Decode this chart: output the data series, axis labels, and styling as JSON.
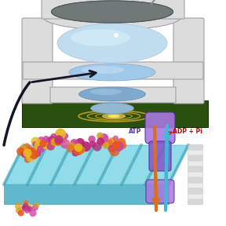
{
  "bg_color": "#ffffff",
  "pcb_color": "#2a5010",
  "pcb_edge": "#1a3008",
  "circuit_color": "#c8a020",
  "housing_white": "#dcdcdc",
  "housing_edge": "#a0a0a8",
  "housing_top_dark": "#707878",
  "inner_blue_light": "#c0ddf0",
  "inner_blue_mid": "#a0c8e8",
  "inner_blue_dark": "#80a8cc",
  "glow_color": "#e8d060",
  "arrow_dark": "#151528",
  "membrane_top": "#90dce8",
  "membrane_side": "#60b8cc",
  "membrane_dot": "#40a0b8",
  "pump_orange": [
    "#e87020",
    "#d06010"
  ],
  "pump_pink": [
    "#d040a0",
    "#b02880"
  ],
  "pump_yellow": [
    "#e8b820",
    "#c09010"
  ],
  "pump_purple_body": "#8858c8",
  "pump_purple_light": "#a878e0",
  "pump_purple_dark": "#5030a0",
  "arrow_orange": "#d87020",
  "arrow_cyan": "#40b8d8",
  "atp_label": "ATP",
  "adp_label": "ADP + Pi",
  "label_color": "#5030a0",
  "arrow_label_color": "#cc0000",
  "helix_colors": [
    "#d0d0d0",
    "#e8e8e8"
  ]
}
